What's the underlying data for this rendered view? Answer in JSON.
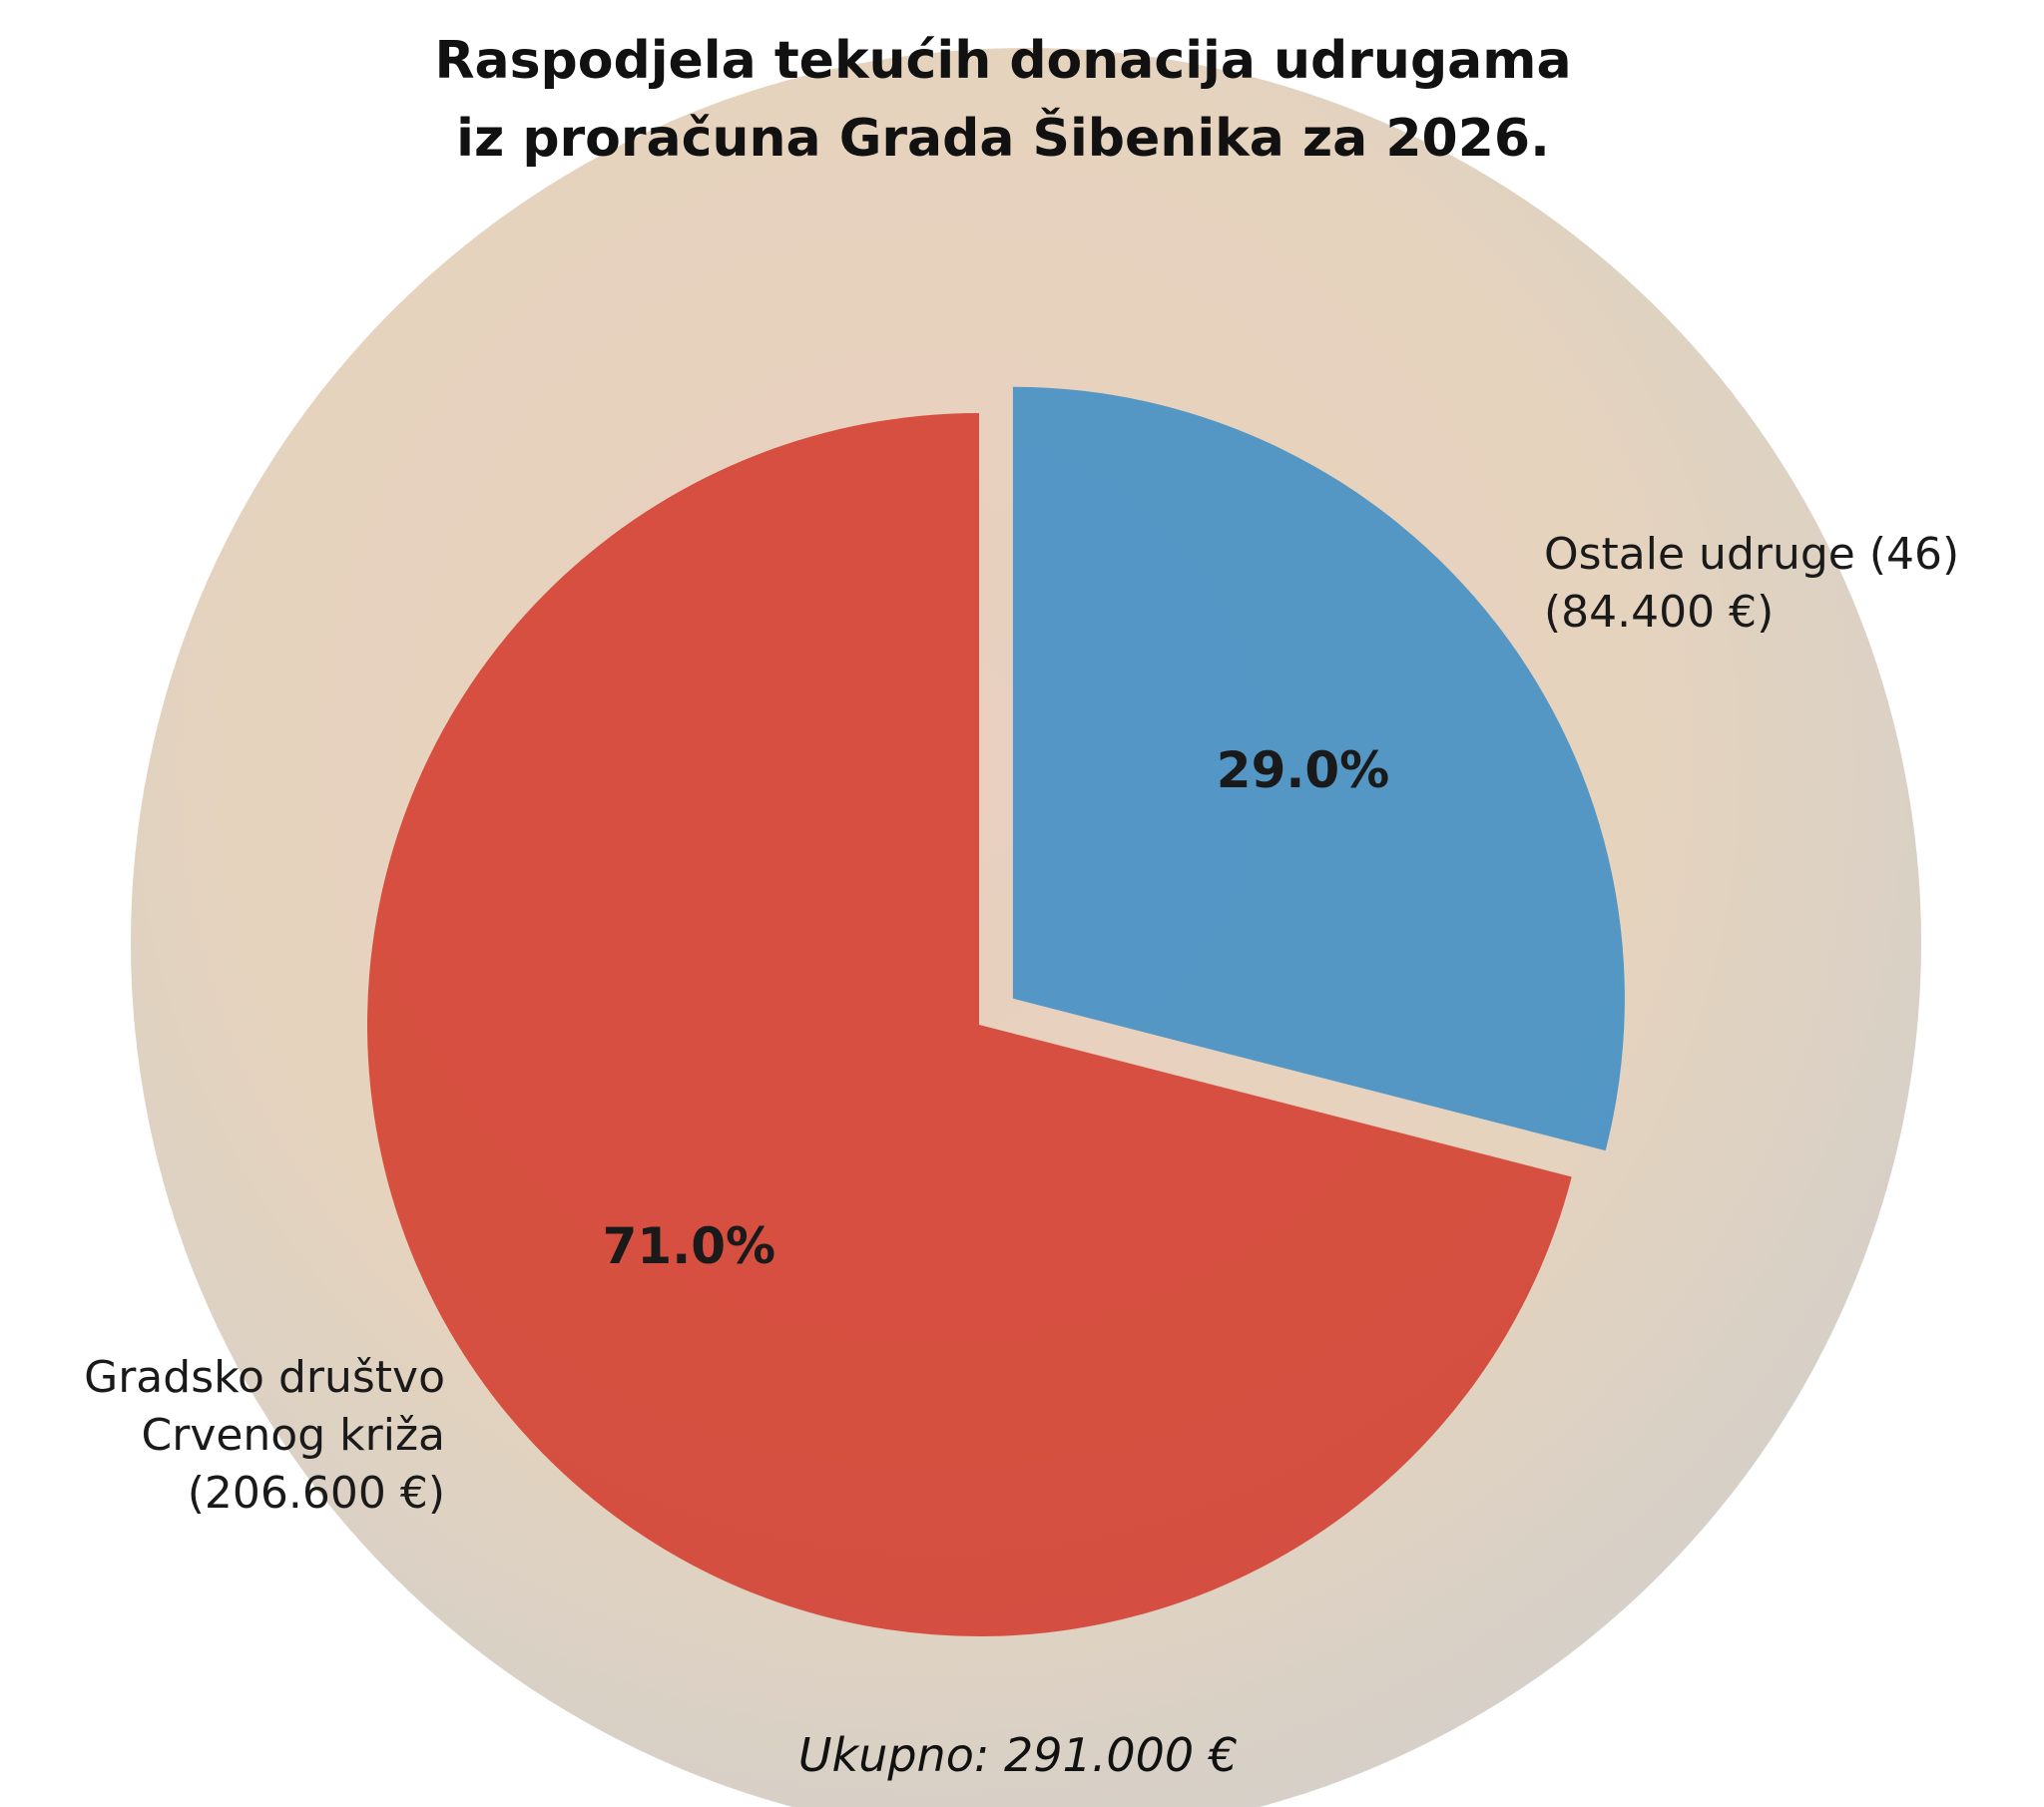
{
  "chart_data": {
    "type": "pie",
    "title": "Raspodjela tekućih donacija udrugama\niz proračuna Grada Šibenika za 2026.",
    "categories": [
      "Gradsko društvo\nCrvenog križa\n(206.600 €)",
      "Ostale udruge (46)\n(84.400 €)"
    ],
    "values": [
      71.0,
      29.0
    ],
    "value_labels": [
      "71.0%",
      "29.0%"
    ],
    "colors": [
      "#d2382a",
      "#3a8cc6"
    ],
    "explode": [
      0,
      0.07
    ],
    "annotation": "Ukupno: 291.000 €"
  }
}
